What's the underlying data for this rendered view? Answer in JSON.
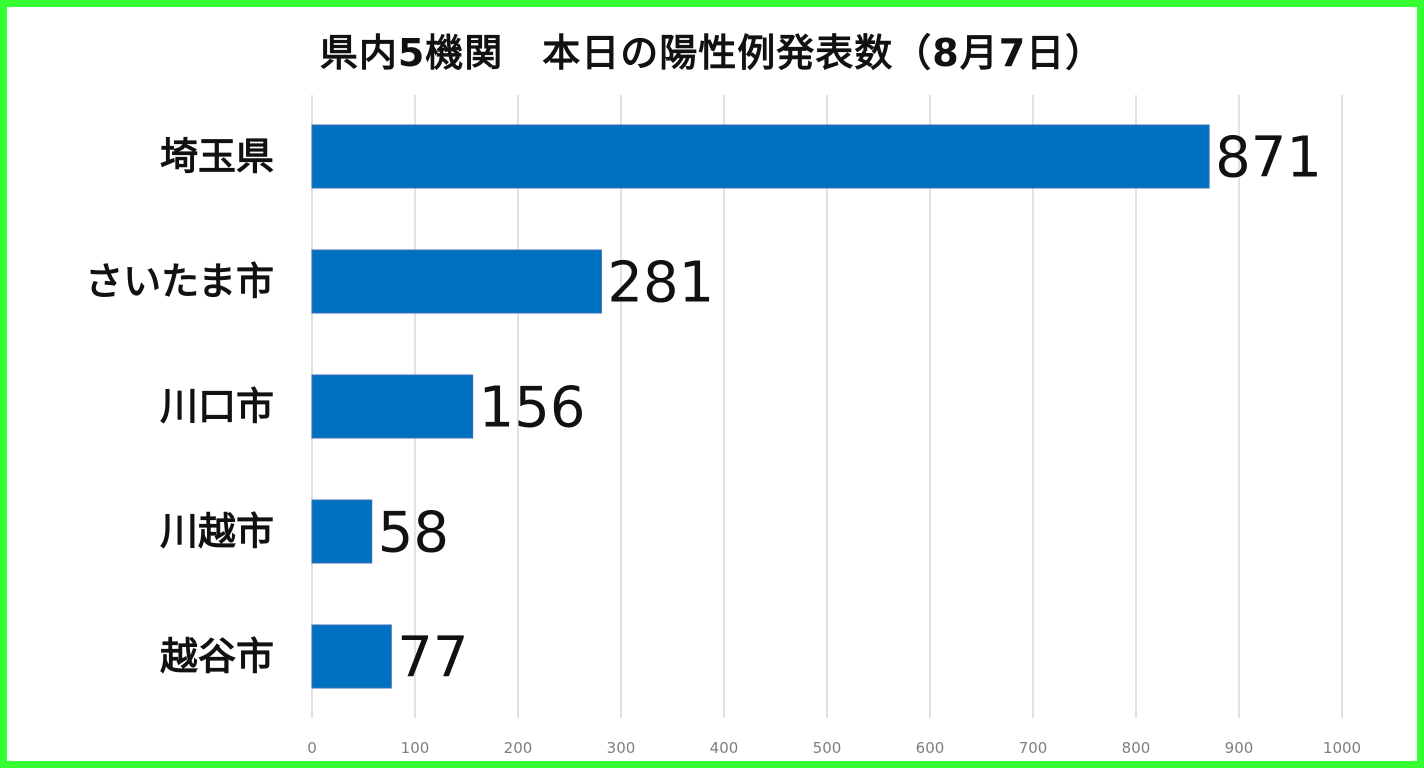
{
  "chart_data": {
    "type": "bar",
    "orientation": "horizontal",
    "title": "県内5機関　本日の陽性例発表数（8月7日）",
    "categories": [
      "埼玉県",
      "さいたま市",
      "川口市",
      "川越市",
      "越谷市"
    ],
    "values": [
      871,
      281,
      156,
      58,
      77
    ],
    "value_labels": [
      "871",
      "281",
      "156",
      "58",
      "77"
    ],
    "xlim": [
      0,
      1000
    ],
    "xticks": [
      0,
      100,
      200,
      300,
      400,
      500,
      600,
      700,
      800,
      900,
      1000
    ],
    "xtick_labels": [
      "0",
      "100",
      "200",
      "300",
      "400",
      "500",
      "600",
      "700",
      "800",
      "900",
      "1000"
    ],
    "grid": true,
    "legend": "none",
    "colors": {
      "bar": "#0070c0",
      "bar_edge": "#3a6fb5",
      "grid": "#d9d9d9",
      "frame": "#33ff33"
    }
  }
}
